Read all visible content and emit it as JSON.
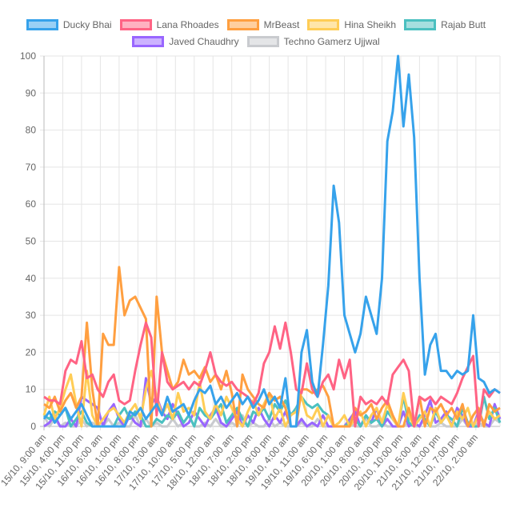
{
  "chart_data": {
    "type": "line",
    "x_start": "15/10, 9:00 am",
    "sample_interval_hours": 2,
    "tick_interval_hours": 7,
    "tick_labels": [
      "15/10, 9:00 am",
      "15/10, 4:00 pm",
      "15/10, 11:00 pm",
      "16/10, 6:00 am",
      "16/10, 1:00 pm",
      "16/10, 8:00 pm",
      "17/10, 3:00 am",
      "17/10, 10:00 am",
      "17/10, 5:00 pm",
      "18/10, 12:00 am",
      "18/10, 7:00 am",
      "18/10, 2:00 pm",
      "18/10, 9:00 pm",
      "19/10, 4:00 am",
      "19/10, 11:00 am",
      "19/10, 6:00 pm",
      "20/10, 1:00 am",
      "20/10, 8:00 am",
      "20/10, 3:00 pm",
      "20/10, 10:00 pm",
      "21/10, 5:00 am",
      "21/10, 12:00 pm",
      "21/10, 7:00 pm",
      "22/10, 2:00 am"
    ],
    "y_ticks": [
      "0",
      "10",
      "20",
      "30",
      "40",
      "50",
      "60",
      "70",
      "80",
      "90",
      "100"
    ],
    "ylim": [
      0,
      100
    ],
    "grid": true,
    "legend_position": "top",
    "series": [
      {
        "name": "Ducky Bhai",
        "color": "#36a2eb",
        "fill": "rgba(54,162,235,0.5)",
        "values": [
          2,
          4,
          1,
          3,
          5,
          2,
          4,
          6,
          3,
          0,
          0,
          0,
          0,
          0,
          0,
          0,
          4,
          3,
          5,
          2,
          4,
          6,
          3,
          8,
          4,
          5,
          6,
          3,
          7,
          10,
          9,
          11,
          6,
          8,
          5,
          7,
          9,
          6,
          8,
          5,
          7,
          10,
          6,
          8,
          5,
          13,
          0,
          0,
          20,
          26,
          12,
          8,
          22,
          38,
          65,
          55,
          30,
          25,
          20,
          25,
          35,
          30,
          25,
          40,
          77,
          85,
          100,
          81,
          95,
          78,
          40,
          14,
          22,
          25,
          15,
          15,
          13,
          15,
          14,
          15,
          30,
          13,
          12,
          9,
          10,
          9
        ]
      },
      {
        "name": "Lana Rhoades",
        "color": "#ff6384",
        "fill": "rgba(255,99,132,0.5)",
        "values": [
          8,
          7,
          7,
          6,
          15,
          18,
          17,
          23,
          13,
          14,
          10,
          8,
          12,
          14,
          7,
          6,
          7,
          15,
          22,
          28,
          24,
          3,
          20,
          12,
          10,
          11,
          12,
          10,
          12,
          11,
          15,
          20,
          14,
          12,
          11,
          12,
          10,
          9,
          8,
          6,
          9,
          17,
          20,
          27,
          21,
          28,
          20,
          10,
          9,
          17,
          10,
          8,
          12,
          14,
          10,
          18,
          13,
          18,
          0,
          8,
          6,
          7,
          6,
          8,
          6,
          14,
          16,
          18,
          15,
          0,
          8,
          7,
          8,
          6,
          8,
          7,
          6,
          9,
          13,
          16,
          19,
          0,
          10,
          8,
          10,
          9
        ]
      },
      {
        "name": "MrBeast",
        "color": "#ff9f40",
        "fill": "rgba(255,159,64,0.5)",
        "values": [
          6,
          5,
          8,
          4,
          7,
          9,
          5,
          8,
          28,
          10,
          0,
          25,
          22,
          22,
          43,
          30,
          34,
          35,
          32,
          29,
          0,
          35,
          20,
          15,
          10,
          12,
          18,
          14,
          15,
          13,
          16,
          12,
          14,
          10,
          15,
          9,
          0,
          14,
          10,
          8,
          6,
          5,
          9,
          7,
          8,
          5,
          0,
          0,
          10,
          10,
          9,
          10,
          11,
          8,
          0,
          0,
          0,
          0,
          5,
          3,
          4,
          6,
          2,
          5,
          7,
          3,
          0,
          0,
          5,
          0,
          8,
          0,
          5,
          4,
          6,
          3,
          5,
          2,
          6,
          0,
          3,
          5,
          0,
          6,
          4,
          5
        ]
      },
      {
        "name": "Hina Sheikh",
        "color": "#ffcd56",
        "fill": "rgba(255,205,86,0.5)",
        "values": [
          3,
          8,
          2,
          5,
          10,
          14,
          6,
          0,
          15,
          3,
          0,
          2,
          4,
          5,
          3,
          1,
          4,
          6,
          2,
          10,
          15,
          8,
          3,
          6,
          2,
          9,
          4,
          5,
          3,
          12,
          4,
          2,
          6,
          3,
          8,
          5,
          2,
          0,
          4,
          7,
          3,
          6,
          9,
          2,
          5,
          0,
          3,
          4,
          8,
          3,
          2,
          5,
          0,
          3,
          0,
          1,
          3,
          0,
          2,
          4,
          0,
          3,
          5,
          1,
          6,
          2,
          0,
          9,
          3,
          0,
          2,
          4,
          0,
          5,
          1,
          3,
          0,
          4,
          2,
          5,
          0,
          3,
          1,
          4,
          2,
          3
        ]
      },
      {
        "name": "Rajab Butt",
        "color": "#4bc0c0",
        "fill": "rgba(75,192,192,0.5)",
        "values": [
          3,
          2,
          4,
          3,
          5,
          0,
          2,
          4,
          1,
          0,
          0,
          0,
          0,
          0,
          3,
          5,
          2,
          4,
          3,
          0,
          0,
          2,
          1,
          3,
          2,
          4,
          1,
          3,
          0,
          5,
          3,
          2,
          4,
          6,
          1,
          3,
          5,
          2,
          0,
          4,
          3,
          5,
          2,
          6,
          4,
          7,
          3,
          5,
          8,
          6,
          5,
          6,
          4,
          3,
          0,
          0,
          0,
          1,
          2,
          0,
          3,
          1,
          2,
          0,
          4,
          2,
          0,
          8,
          1,
          0,
          3,
          2,
          0,
          4,
          1,
          3,
          2,
          0,
          5,
          1,
          0,
          0,
          8,
          2,
          5,
          1
        ]
      },
      {
        "name": "Javed Chaudhry",
        "color": "#9966ff",
        "fill": "rgba(153,102,255,0.5)",
        "values": [
          0,
          1,
          3,
          0,
          0,
          2,
          0,
          8,
          7,
          6,
          5,
          0,
          4,
          6,
          2,
          0,
          3,
          1,
          0,
          13,
          6,
          8,
          4,
          2,
          6,
          3,
          0,
          1,
          4,
          2,
          0,
          3,
          5,
          1,
          0,
          2,
          4,
          0,
          3,
          1,
          5,
          2,
          0,
          3,
          1,
          4,
          0,
          0,
          2,
          0,
          1,
          0,
          3,
          0,
          0,
          0,
          0,
          2,
          4,
          0,
          3,
          1,
          5,
          0,
          2,
          0,
          0,
          4,
          0,
          1,
          0,
          3,
          7,
          1,
          2,
          4,
          0,
          5,
          3,
          0,
          0,
          4,
          1,
          0,
          6,
          2
        ]
      },
      {
        "name": "Techno Gamerz Ujjwal",
        "color": "#c9cbcf",
        "fill": "rgba(201,203,207,0.5)",
        "values": [
          3,
          0,
          2,
          0,
          1,
          0,
          0,
          2,
          0,
          1,
          0,
          0,
          2,
          0,
          1,
          0,
          0,
          3,
          0,
          2,
          0,
          1,
          0,
          0,
          2,
          0,
          1,
          3,
          0,
          0,
          1,
          0,
          2,
          0,
          0,
          1,
          0,
          3,
          0,
          1,
          0,
          0,
          2,
          0,
          1,
          0,
          0,
          0,
          1,
          0,
          0,
          2,
          0,
          0,
          0,
          0,
          0,
          1,
          0,
          0,
          2,
          0,
          0,
          1,
          0,
          0,
          0,
          0,
          1,
          0,
          0,
          2,
          0,
          0,
          1,
          0,
          0,
          0,
          2,
          0,
          0,
          1,
          0,
          0,
          2,
          1
        ]
      }
    ]
  }
}
